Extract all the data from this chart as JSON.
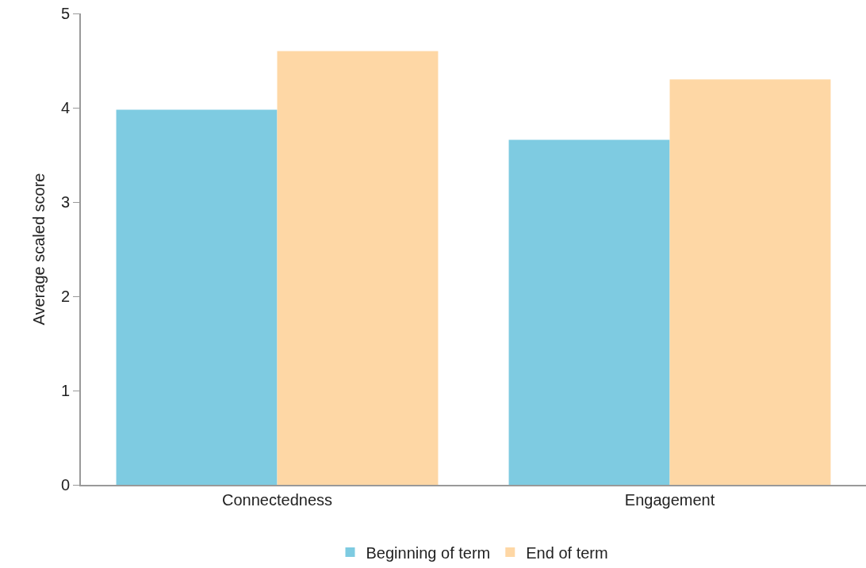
{
  "chart_data": {
    "type": "bar",
    "ylabel": "Average scaled score",
    "categories": [
      "Connectedness",
      "Engagement"
    ],
    "series": [
      {
        "name": "Beginning of term",
        "color": "#7ecbe1",
        "values": [
          3.98,
          3.66
        ]
      },
      {
        "name": "End of term",
        "color": "#fed7a5",
        "values": [
          4.6,
          4.3
        ]
      }
    ],
    "ylim": [
      0,
      5
    ],
    "yticks": [
      0,
      1,
      2,
      3,
      4,
      5
    ],
    "legend": "bottom"
  }
}
